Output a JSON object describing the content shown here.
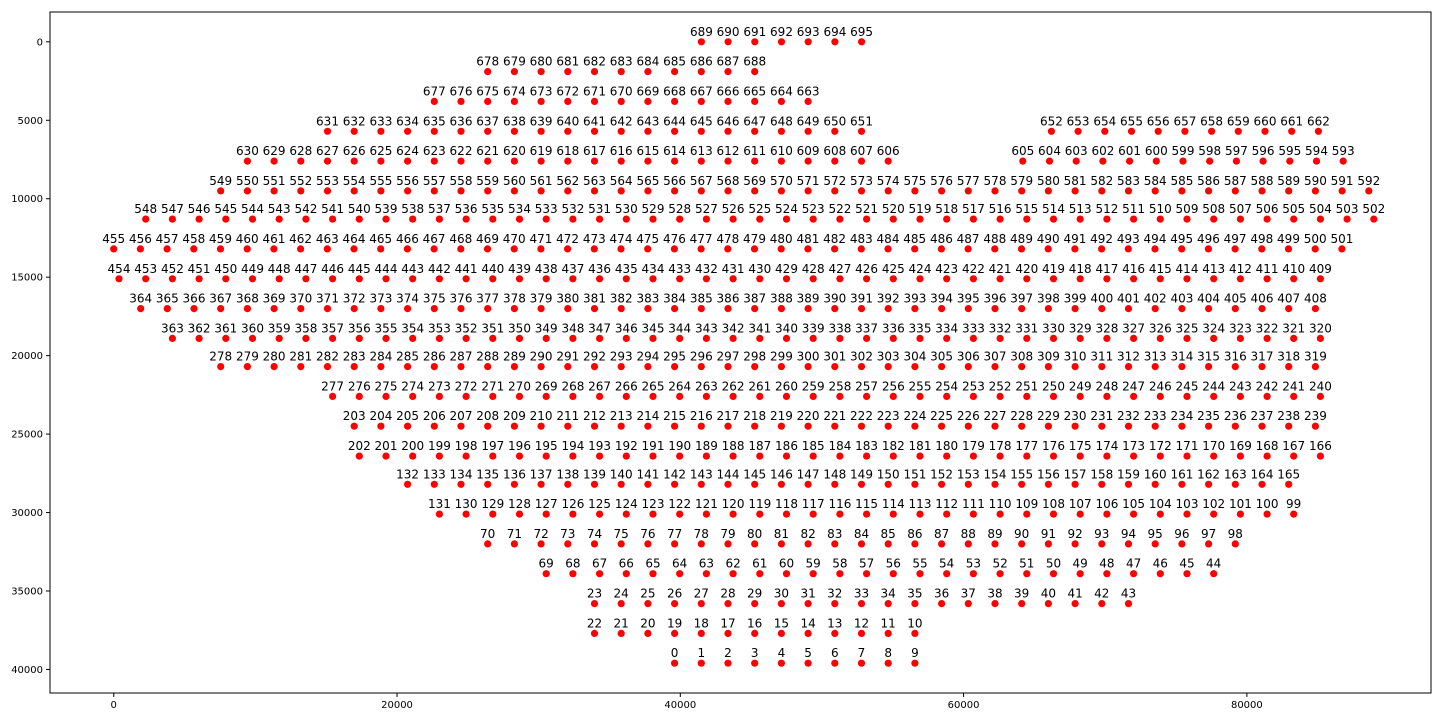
{
  "chart_data": {
    "type": "scatter",
    "title": "",
    "xlabel": "",
    "ylabel": "",
    "xlim": [
      -4500,
      93000
    ],
    "ylim": [
      41500,
      -1900
    ],
    "y_inverted": true,
    "grid": false,
    "legend": "none",
    "marker_color": "#ff0000",
    "x_ticks": [
      0,
      20000,
      40000,
      60000,
      80000
    ],
    "x_tick_labels": [
      "0",
      "20000",
      "40000",
      "60000",
      "80000"
    ],
    "y_ticks": [
      0,
      5000,
      10000,
      15000,
      20000,
      25000,
      30000,
      35000,
      40000
    ],
    "y_tick_labels": [
      "0",
      "5000",
      "10000",
      "15000",
      "20000",
      "25000",
      "30000",
      "35000",
      "40000"
    ],
    "x_step": 1885,
    "rows": [
      {
        "y": 39600,
        "x_start": 39600,
        "id_start": 0,
        "id_end": 9
      },
      {
        "y": 37700,
        "x_start": 56560,
        "id_start": 10,
        "id_end": 22
      },
      {
        "y": 35800,
        "x_start": 33945,
        "id_start": 23,
        "id_end": 43
      },
      {
        "y": 33900,
        "x_start": 77655,
        "id_start": 44,
        "id_end": 69
      },
      {
        "y": 32000,
        "x_start": 26405,
        "id_start": 70,
        "id_end": 98
      },
      {
        "y": 30100,
        "x_start": 83310,
        "id_start": 99,
        "id_end": 131
      },
      {
        "y": 28200,
        "x_start": 20750,
        "id_start": 132,
        "id_end": 165
      },
      {
        "y": 26400,
        "x_start": 85195,
        "id_start": 166,
        "id_end": 202
      },
      {
        "y": 24500,
        "x_start": 16980,
        "id_start": 203,
        "id_end": 239
      },
      {
        "y": 22600,
        "x_start": 85195,
        "id_start": 240,
        "id_end": 277
      },
      {
        "y": 20700,
        "x_start": 7555,
        "id_start": 278,
        "id_end": 319
      },
      {
        "y": 18900,
        "x_start": 85195,
        "id_start": 320,
        "id_end": 363
      },
      {
        "y": 17000,
        "x_start": 1900,
        "id_start": 364,
        "id_end": 408
      },
      {
        "y": 15100,
        "x_start": 85195,
        "id_start": 409,
        "id_end": 454
      },
      {
        "y": 13200,
        "x_start": 0,
        "id_start": 455,
        "id_end": 501
      },
      {
        "y": 11300,
        "x_start": 88965,
        "id_start": 502,
        "id_end": 548
      },
      {
        "y": 9500,
        "x_start": 7555,
        "id_start": 549,
        "id_end": 592
      },
      {
        "y": 7600,
        "x_start": 86800,
        "id_start": 593,
        "id_end": 605
      },
      {
        "y": 7600,
        "x_start": 54675,
        "id_start": 606,
        "id_end": 630
      },
      {
        "y": 5700,
        "x_start": 15095,
        "id_start": 631,
        "id_end": 651
      },
      {
        "y": 5700,
        "x_start": 66200,
        "id_start": 652,
        "id_end": 662
      },
      {
        "y": 3800,
        "x_start": 49020,
        "id_start": 663,
        "id_end": 677
      },
      {
        "y": 1900,
        "x_start": 26405,
        "id_start": 678,
        "id_end": 688
      },
      {
        "y": 0,
        "x_start": 41490,
        "id_start": 689,
        "id_end": 695
      }
    ]
  }
}
